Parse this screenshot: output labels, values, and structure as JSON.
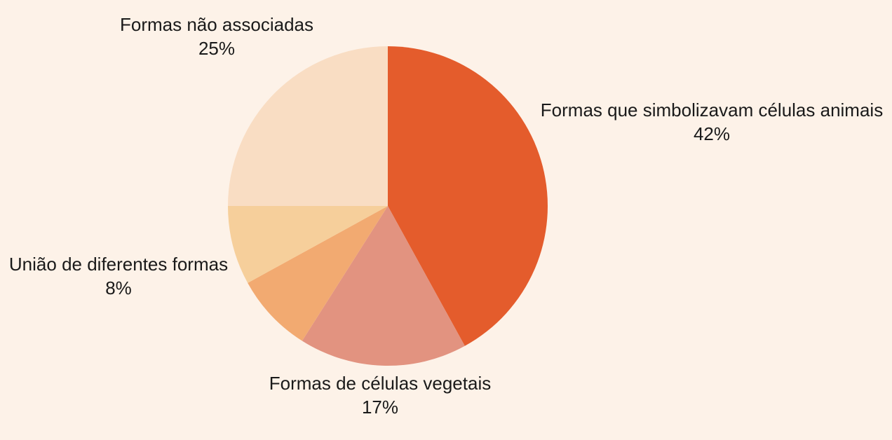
{
  "background_color": "#fdf2e8",
  "text_color": "#1a1a1a",
  "chart_data": {
    "type": "pie",
    "title": "",
    "start_angle_deg": 0,
    "direction": "clockwise",
    "legend_position": "outside-labels",
    "slices": [
      {
        "label": "Formas que simbolizavam células animais",
        "pct_label": "42%",
        "value": 42,
        "color": "#e45c2c"
      },
      {
        "label": "Formas de células vegetais",
        "pct_label": "17%",
        "value": 17,
        "color": "#e29380"
      },
      {
        "label": "",
        "pct_label": "",
        "value": 8,
        "color": "#f2aa71"
      },
      {
        "label": "União de diferentes formas",
        "pct_label": "8%",
        "value": 8,
        "color": "#f6cf9b"
      },
      {
        "label": "Formas não associadas",
        "pct_label": "25%",
        "value": 25,
        "color": "#f9ddc3"
      }
    ]
  }
}
